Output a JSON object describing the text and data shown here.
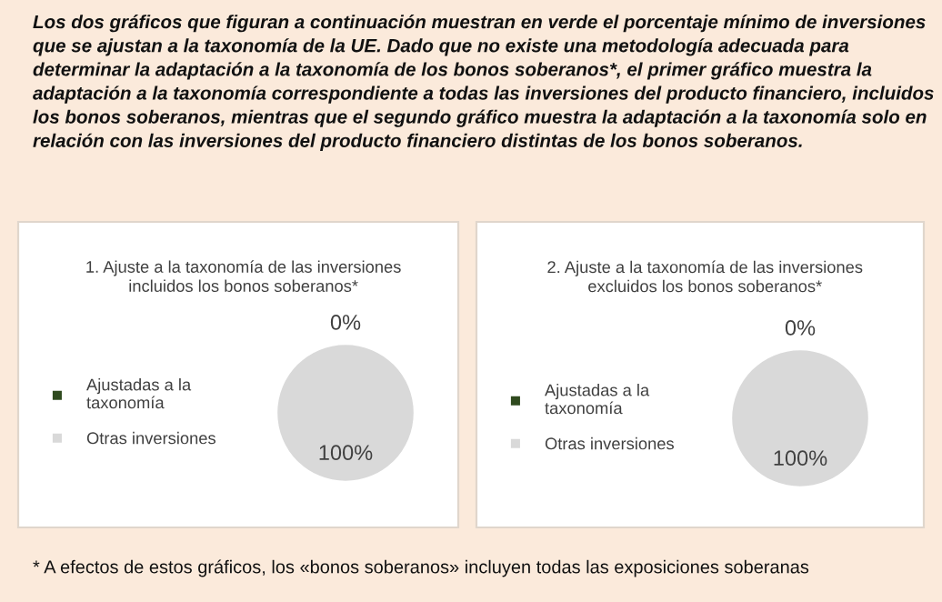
{
  "chart_data": [
    {
      "type": "other",
      "annotations": [
        "Los dos gráficos que figuran a continuación muestran en verde el porcentaje mínimo de inversiones que se ajustan a la taxonomía de la UE. Dado que no existe una metodología adecuada para determinar la adaptación a la taxonomía de los bonos soberanos*, el primer gráfico muestra la adaptación a la taxonomía correspondiente a todas las inversiones del producto financiero, incluidos los bonos soberanos, mientras que el segundo gráfico muestra la adaptación a la taxonomía solo en relación con las inversiones del producto financiero distintas de los bonos soberanos."
      ]
    },
    {
      "type": "pie",
      "title": "1. Ajuste a la taxonomía de las inversiones\nincluidos los bonos soberanos*",
      "categories": [
        "Ajustadas a la\ntaxonomía",
        "Otras inversiones"
      ],
      "values": [
        0,
        100
      ],
      "colors": [
        "#2f4a1e",
        "#d9d9d9"
      ],
      "value_labels": [
        "0%",
        "100%"
      ],
      "legend": "left"
    },
    {
      "type": "pie",
      "title": "2. Ajuste a la taxonomía de las inversiones\nexcluidos los bonos soberanos*",
      "categories": [
        "Ajustadas a la\ntaxonomía",
        "Otras inversiones"
      ],
      "values": [
        0,
        100
      ],
      "colors": [
        "#2f4a1e",
        "#d9d9d9"
      ],
      "value_labels": [
        "0%",
        "100%"
      ],
      "legend": "left"
    },
    {
      "type": "other",
      "annotations": [
        "* A efectos de estos gráficos, los «bonos soberanos» incluyen todas las exposiciones soberanas"
      ]
    }
  ]
}
